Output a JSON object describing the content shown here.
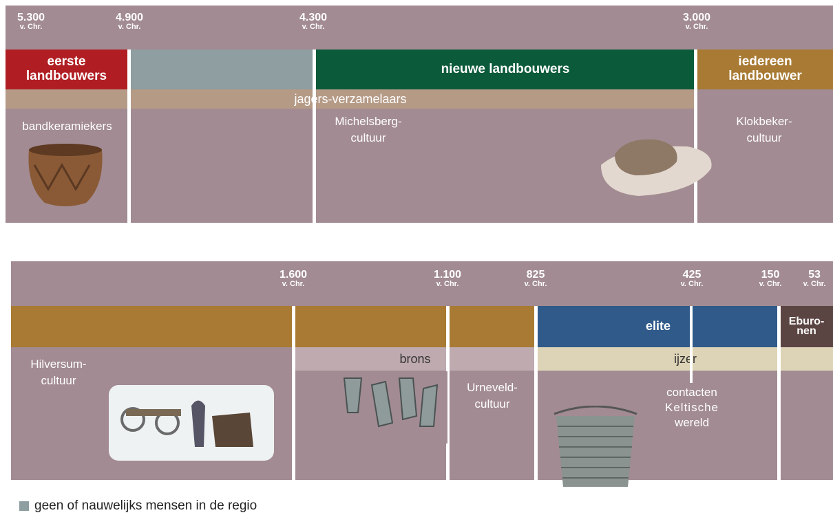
{
  "top": {
    "dates": [
      {
        "year": "5.300",
        "era": "v. Chr."
      },
      {
        "year": "4.900",
        "era": "v. Chr."
      },
      {
        "year": "4.300",
        "era": "v. Chr."
      },
      {
        "year": "3.000",
        "era": "v. Chr."
      }
    ],
    "bands": [
      {
        "lines": [
          "eerste",
          "landbouwers"
        ]
      },
      {
        "lines": [
          "nieuwe landbouwers"
        ]
      },
      {
        "lines": [
          "iedereen",
          "landbouwer"
        ]
      }
    ],
    "strip": "jagers-verzamelaars",
    "cultures": [
      {
        "lines": [
          "bandkeramiekers"
        ]
      },
      {
        "lines": [
          "Michelsberg-",
          "cultuur"
        ]
      },
      {
        "lines": [
          "Klokbeker-",
          "cultuur"
        ]
      }
    ]
  },
  "bottom": {
    "dates": [
      {
        "year": "1.600",
        "era": "v. Chr."
      },
      {
        "year": "1.100",
        "era": "v. Chr."
      },
      {
        "year": "825",
        "era": "v. Chr."
      },
      {
        "year": "425",
        "era": "v. Chr."
      },
      {
        "year": "150",
        "era": "v. Chr."
      },
      {
        "year": "53",
        "era": "v. Chr."
      }
    ],
    "bands": [
      {
        "lines": [
          "elite"
        ]
      },
      {
        "lines": [
          "Eburo-",
          "nen"
        ]
      }
    ],
    "strips": [
      "brons",
      "ijzer"
    ],
    "cultures": [
      {
        "lines": [
          "Hilversum-",
          "cultuur"
        ]
      },
      {
        "lines": [
          "Urneveld-",
          "cultuur"
        ]
      },
      {
        "lines": [
          "contacten",
          "Keltische",
          "wereld"
        ]
      }
    ]
  },
  "legend": "geen of nauwelijks mensen in de regio"
}
